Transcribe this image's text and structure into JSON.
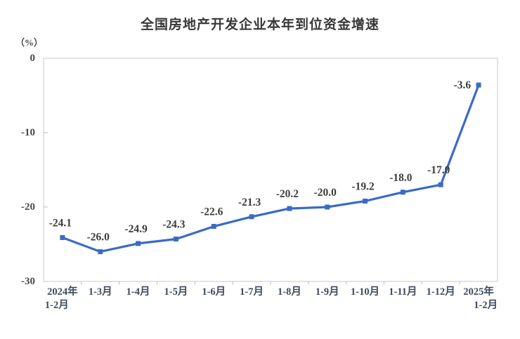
{
  "page": {
    "background": "#ffffff"
  },
  "chart_data": {
    "type": "line",
    "title": "全国房地产开发企业本年到位资金增速",
    "unit_label": "（%）",
    "categories": [
      "2024年1-2月",
      "1-3月",
      "1-4月",
      "1-5月",
      "1-6月",
      "1-7月",
      "1-8月",
      "1-9月",
      "1-10月",
      "1-11月",
      "1-12月",
      "2025年1-2月"
    ],
    "x_tick_labels": [
      {
        "line1": "2024年",
        "line2": "1-2月",
        "align2": "left"
      },
      {
        "line1": "1-3月"
      },
      {
        "line1": "1-4月"
      },
      {
        "line1": "1-5月"
      },
      {
        "line1": "1-6月"
      },
      {
        "line1": "1-7月"
      },
      {
        "line1": "1-8月"
      },
      {
        "line1": "1-9月"
      },
      {
        "line1": "1-10月"
      },
      {
        "line1": "1-11月"
      },
      {
        "line1": "1-12月"
      },
      {
        "line1": "2025年",
        "line2": "1-2月",
        "align2": "right"
      }
    ],
    "series": [
      {
        "values": [
          -24.1,
          -26.0,
          -24.9,
          -24.3,
          -22.6,
          -21.3,
          -20.2,
          -20.0,
          -19.2,
          -18.0,
          -17.0,
          -3.6
        ],
        "data_labels": [
          "-24.1",
          "-26.0",
          "-24.9",
          "-24.3",
          "-22.6",
          "-21.3",
          "-20.2",
          "-20.0",
          "-19.2",
          "-18.0",
          "-17.0",
          "-3.6"
        ],
        "color": "#3A6BC5",
        "marker": "square",
        "last_label_position": "left"
      }
    ],
    "ylim": [
      -30,
      0
    ],
    "yticks": [
      0,
      -10,
      -20,
      -30
    ],
    "ytick_labels": [
      "0",
      "-10",
      "-20",
      "-30"
    ],
    "grid": false,
    "legend": "none"
  },
  "colors": {
    "line": "#3A6BC5",
    "plot_border": "#D9D9D9",
    "axis_tick": "#C6C6C6",
    "title_text": "#383838",
    "y_axis_text": "#4d4743",
    "x_axis_text": "#3E4A5E",
    "data_label_text": "#3C3B39"
  }
}
